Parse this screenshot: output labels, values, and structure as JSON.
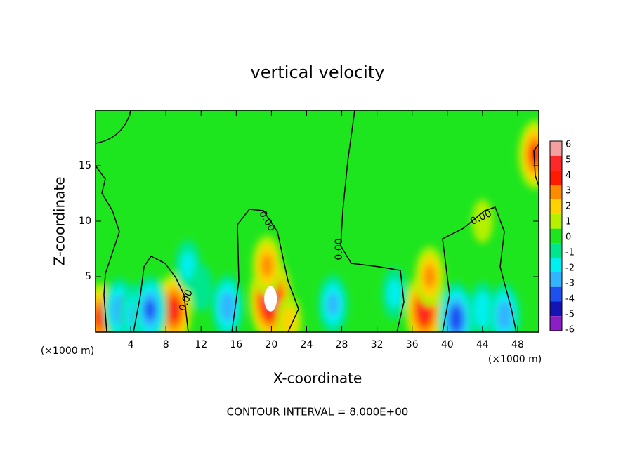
{
  "chart_data": {
    "type": "contour",
    "title": "vertical velocity",
    "x_label": "X-coordinate",
    "y_label": "Z-coordinate",
    "x_unit": "(×1000 m)",
    "footer": "CONTOUR INTERVAL = 8.000E+00",
    "xlim": [
      0,
      50.4
    ],
    "ylim": [
      0,
      20
    ],
    "xticks": [
      4,
      8,
      12,
      16,
      20,
      24,
      28,
      32,
      36,
      40,
      44,
      48
    ],
    "yticks": [
      5,
      10,
      15
    ],
    "background_color": "#1ee61e",
    "colorbar": {
      "ticks": [
        6,
        5,
        4,
        3,
        2,
        1,
        0,
        -1,
        -2,
        -3,
        -4,
        -5,
        -6
      ],
      "colors": [
        "#f4a0a0",
        "#ff2828",
        "#ff1a00",
        "#ff8c00",
        "#ffd200",
        "#b4f000",
        "#1ee61e",
        "#00e68c",
        "#00f0f0",
        "#32b4ff",
        "#1e50f0",
        "#1414b4",
        "#8c1ec8"
      ]
    },
    "contour_level": {
      "value": 0,
      "label": "0.00"
    },
    "features": {
      "x": [
        19.9,
        8.9,
        37.4,
        0.5,
        2.7,
        4.5,
        6.2,
        15,
        10.5,
        12,
        27,
        34,
        41,
        44,
        46.5,
        38,
        19.5,
        44,
        50,
        22
      ],
      "z": [
        3,
        2,
        2,
        1.3,
        2,
        1.6,
        2,
        2.3,
        6,
        4,
        2.5,
        3.5,
        1.2,
        2,
        1.5,
        5,
        6,
        10,
        16,
        1
      ],
      "w": [
        6,
        4.5,
        5,
        4,
        -3.5,
        -3,
        -4,
        -3.5,
        -2,
        -1.5,
        -3,
        -2,
        -4.5,
        -2.5,
        -3.5,
        3,
        3,
        1,
        4,
        2
      ]
    }
  }
}
